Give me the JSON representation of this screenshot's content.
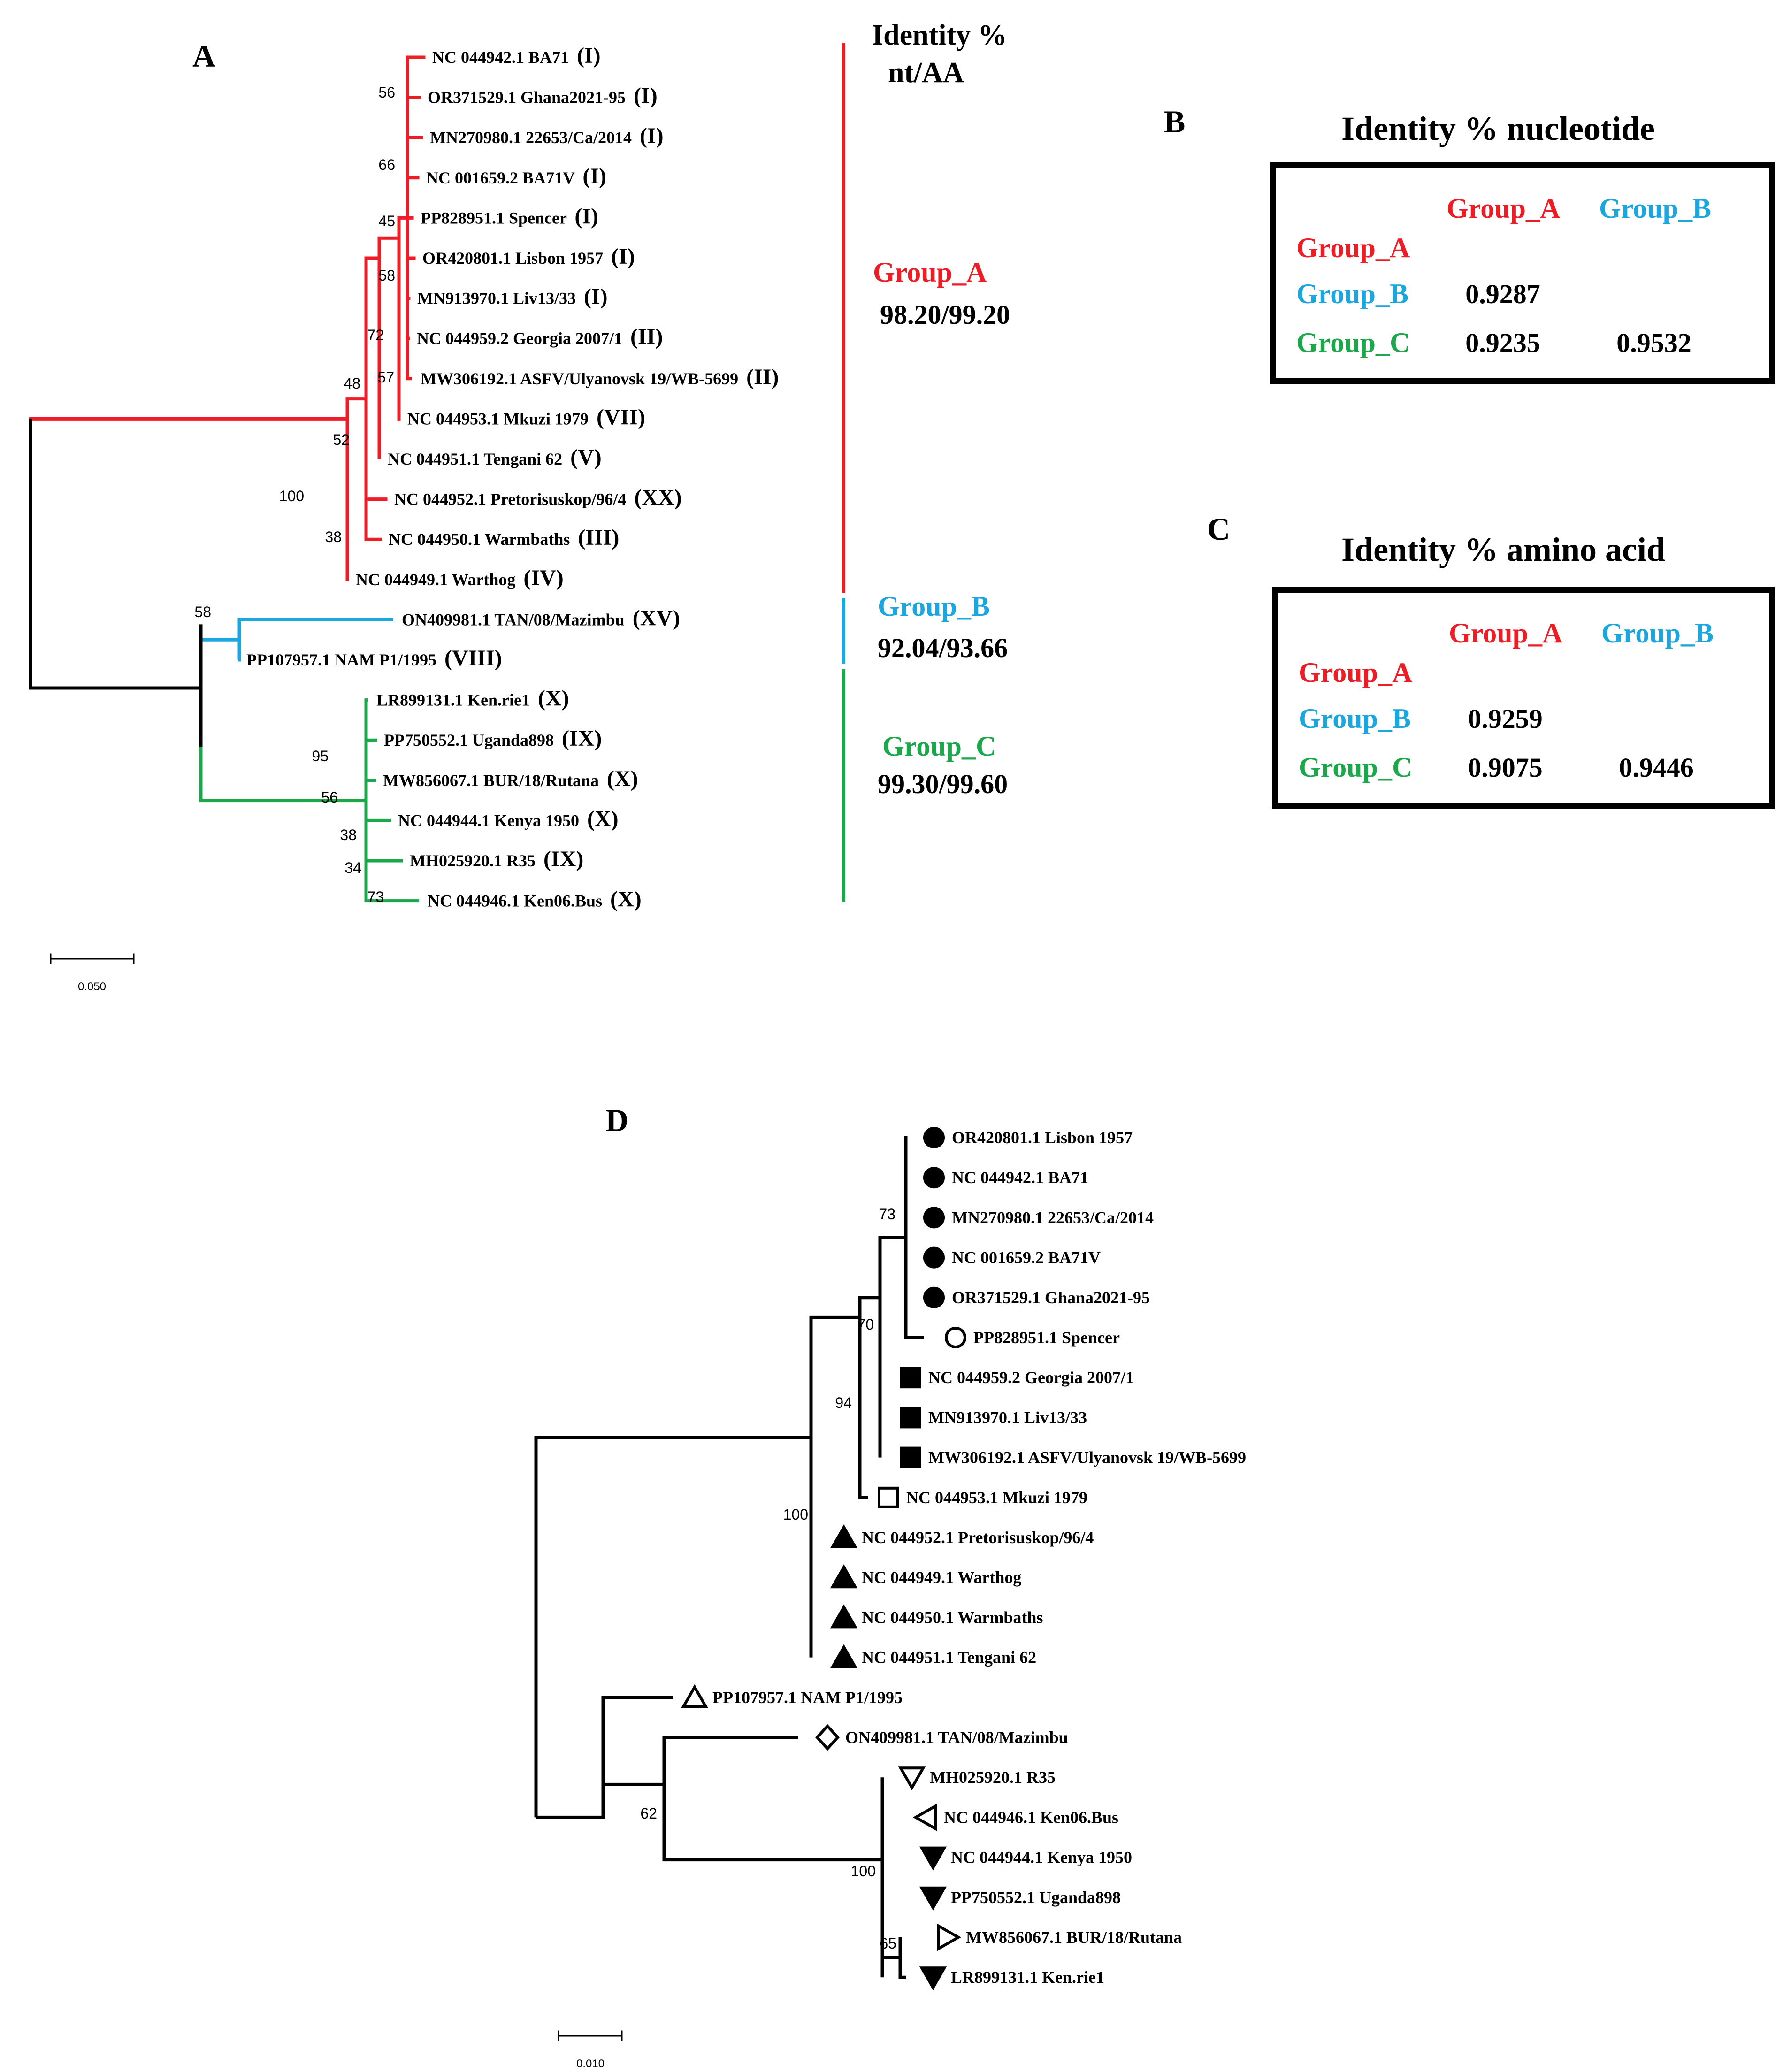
{
  "colors": {
    "group_a": "#ee1c24",
    "group_b": "#1ba6e0",
    "group_c": "#1aa84a",
    "black": "#000000"
  },
  "panel_a": {
    "label": "A",
    "header_line1": "Identity %",
    "header_line2": "nt/AA",
    "taxa": [
      {
        "accession": "NC 044942.1",
        "name": "BA71",
        "genotype": "(I)",
        "group": "a"
      },
      {
        "accession": "OR371529.1",
        "name": "Ghana2021-95",
        "genotype": "(I)",
        "group": "a"
      },
      {
        "accession": "MN270980.1",
        "name": "22653/Ca/2014",
        "genotype": "(I)",
        "group": "a"
      },
      {
        "accession": "NC 001659.2",
        "name": "BA71V",
        "genotype": "(I)",
        "group": "a"
      },
      {
        "accession": "PP828951.1",
        "name": "Spencer",
        "genotype": "(I)",
        "group": "a"
      },
      {
        "accession": "OR420801.1",
        "name": "Lisbon 1957",
        "genotype": "(I)",
        "group": "a"
      },
      {
        "accession": "MN913970.1",
        "name": "Liv13/33",
        "genotype": "(I)",
        "group": "a"
      },
      {
        "accession": "NC 044959.2",
        "name": "Georgia 2007/1",
        "genotype": "(II)",
        "group": "a"
      },
      {
        "accession": "MW306192.1",
        "name": "ASFV/Ulyanovsk 19/WB-5699",
        "genotype": "(II)",
        "group": "a"
      },
      {
        "accession": "NC 044953.1",
        "name": "Mkuzi 1979",
        "genotype": "(VII)",
        "group": "a"
      },
      {
        "accession": "NC 044951.1",
        "name": "Tengani 62",
        "genotype": "(V)",
        "group": "a"
      },
      {
        "accession": "NC 044952.1",
        "name": "Pretorisuskop/96/4",
        "genotype": "(XX)",
        "group": "a"
      },
      {
        "accession": "NC 044950.1",
        "name": "Warmbaths",
        "genotype": "(III)",
        "group": "a"
      },
      {
        "accession": "NC 044949.1",
        "name": "Warthog",
        "genotype": "(IV)",
        "group": "a"
      },
      {
        "accession": "ON409981.1",
        "name": "TAN/08/Mazimbu",
        "genotype": "(XV)",
        "group": "b"
      },
      {
        "accession": "PP107957.1",
        "name": "NAM P1/1995",
        "genotype": "(VIII)",
        "group": "b"
      },
      {
        "accession": "LR899131.1",
        "name": "Ken.rie1",
        "genotype": "(X)",
        "group": "c"
      },
      {
        "accession": "PP750552.1",
        "name": "Uganda898",
        "genotype": "(IX)",
        "group": "c"
      },
      {
        "accession": "MW856067.1",
        "name": "BUR/18/Rutana",
        "genotype": "(X)",
        "group": "c"
      },
      {
        "accession": "NC 044944.1",
        "name": "Kenya 1950",
        "genotype": "(X)",
        "group": "c"
      },
      {
        "accession": "MH025920.1",
        "name": "R35",
        "genotype": "(IX)",
        "group": "c"
      },
      {
        "accession": "NC 044946.1",
        "name": "Ken06.Bus",
        "genotype": "(X)",
        "group": "c"
      }
    ],
    "bootstraps": [
      "56",
      "66",
      "45",
      "58",
      "72",
      "57",
      "48",
      "52",
      "100",
      "38",
      "58",
      "95",
      "56",
      "38",
      "34",
      "73"
    ],
    "groups": [
      {
        "name": "Group_A",
        "identity": "98.20/99.20"
      },
      {
        "name": "Group_B",
        "identity": "92.04/93.66"
      },
      {
        "name": "Group_C",
        "identity": "99.30/99.60"
      }
    ],
    "scale_label": "0.050"
  },
  "panel_b": {
    "label": "B",
    "title": "Identity % nucleotide",
    "col_headers": [
      "Group_A",
      "Group_B"
    ],
    "row_headers": [
      "Group_A",
      "Group_B",
      "Group_C"
    ],
    "values": {
      "b_a": "0.9287",
      "c_a": "0.9235",
      "c_b": "0.9532"
    }
  },
  "panel_c": {
    "label": "C",
    "title": "Identity % amino acid",
    "col_headers": [
      "Group_A",
      "Group_B"
    ],
    "row_headers": [
      "Group_A",
      "Group_B",
      "Group_C"
    ],
    "values": {
      "b_a": "0.9259",
      "c_a": "0.9075",
      "c_b": "0.9446"
    }
  },
  "panel_d": {
    "label": "D",
    "taxa": [
      {
        "label": "OR420801.1 Lisbon 1957",
        "marker": "filled-circle"
      },
      {
        "label": "NC 044942.1  BA71",
        "marker": "filled-circle"
      },
      {
        "label": "MN270980.1 22653/Ca/2014",
        "marker": "filled-circle"
      },
      {
        "label": "NC 001659.2 BA71V",
        "marker": "filled-circle"
      },
      {
        "label": "OR371529.1 Ghana2021-95",
        "marker": "filled-circle"
      },
      {
        "label": "PP828951.1 Spencer",
        "marker": "open-circle"
      },
      {
        "label": "NC 044959.2 Georgia 2007/1",
        "marker": "filled-square"
      },
      {
        "label": "MN913970.1 Liv13/33",
        "marker": "filled-square"
      },
      {
        "label": "MW306192.1 ASFV/Ulyanovsk 19/WB-5699",
        "marker": "filled-square"
      },
      {
        "label": "NC 044953.1 Mkuzi 1979",
        "marker": "open-square"
      },
      {
        "label": "NC 044952.1 Pretorisuskop/96/4",
        "marker": "filled-triangle-up"
      },
      {
        "label": "NC 044949.1 Warthog",
        "marker": "filled-triangle-up"
      },
      {
        "label": "NC 044950.1 Warmbaths",
        "marker": "filled-triangle-up"
      },
      {
        "label": "NC 044951.1 Tengani 62",
        "marker": "filled-triangle-up"
      },
      {
        "label": "PP107957.1 NAM P1/1995",
        "marker": "open-triangle-up"
      },
      {
        "label": "ON409981.1 TAN/08/Mazimbu",
        "marker": "open-diamond"
      },
      {
        "label": "MH025920.1 R35",
        "marker": "open-triangle-down"
      },
      {
        "label": "NC 044946.1 Ken06.Bus",
        "marker": "open-triangle-left"
      },
      {
        "label": "NC 044944.1 Kenya 1950",
        "marker": "filled-triangle-down"
      },
      {
        "label": "PP750552.1 Uganda898",
        "marker": "filled-triangle-down"
      },
      {
        "label": "MW856067.1 BUR/18/Rutana",
        "marker": "open-triangle-right"
      },
      {
        "label": "LR899131.1 Ken.rie1",
        "marker": "filled-triangle-down"
      }
    ],
    "bootstraps": [
      "73",
      "70",
      "94",
      "100",
      "62",
      "100",
      "65"
    ],
    "scale_label": "0.010"
  }
}
